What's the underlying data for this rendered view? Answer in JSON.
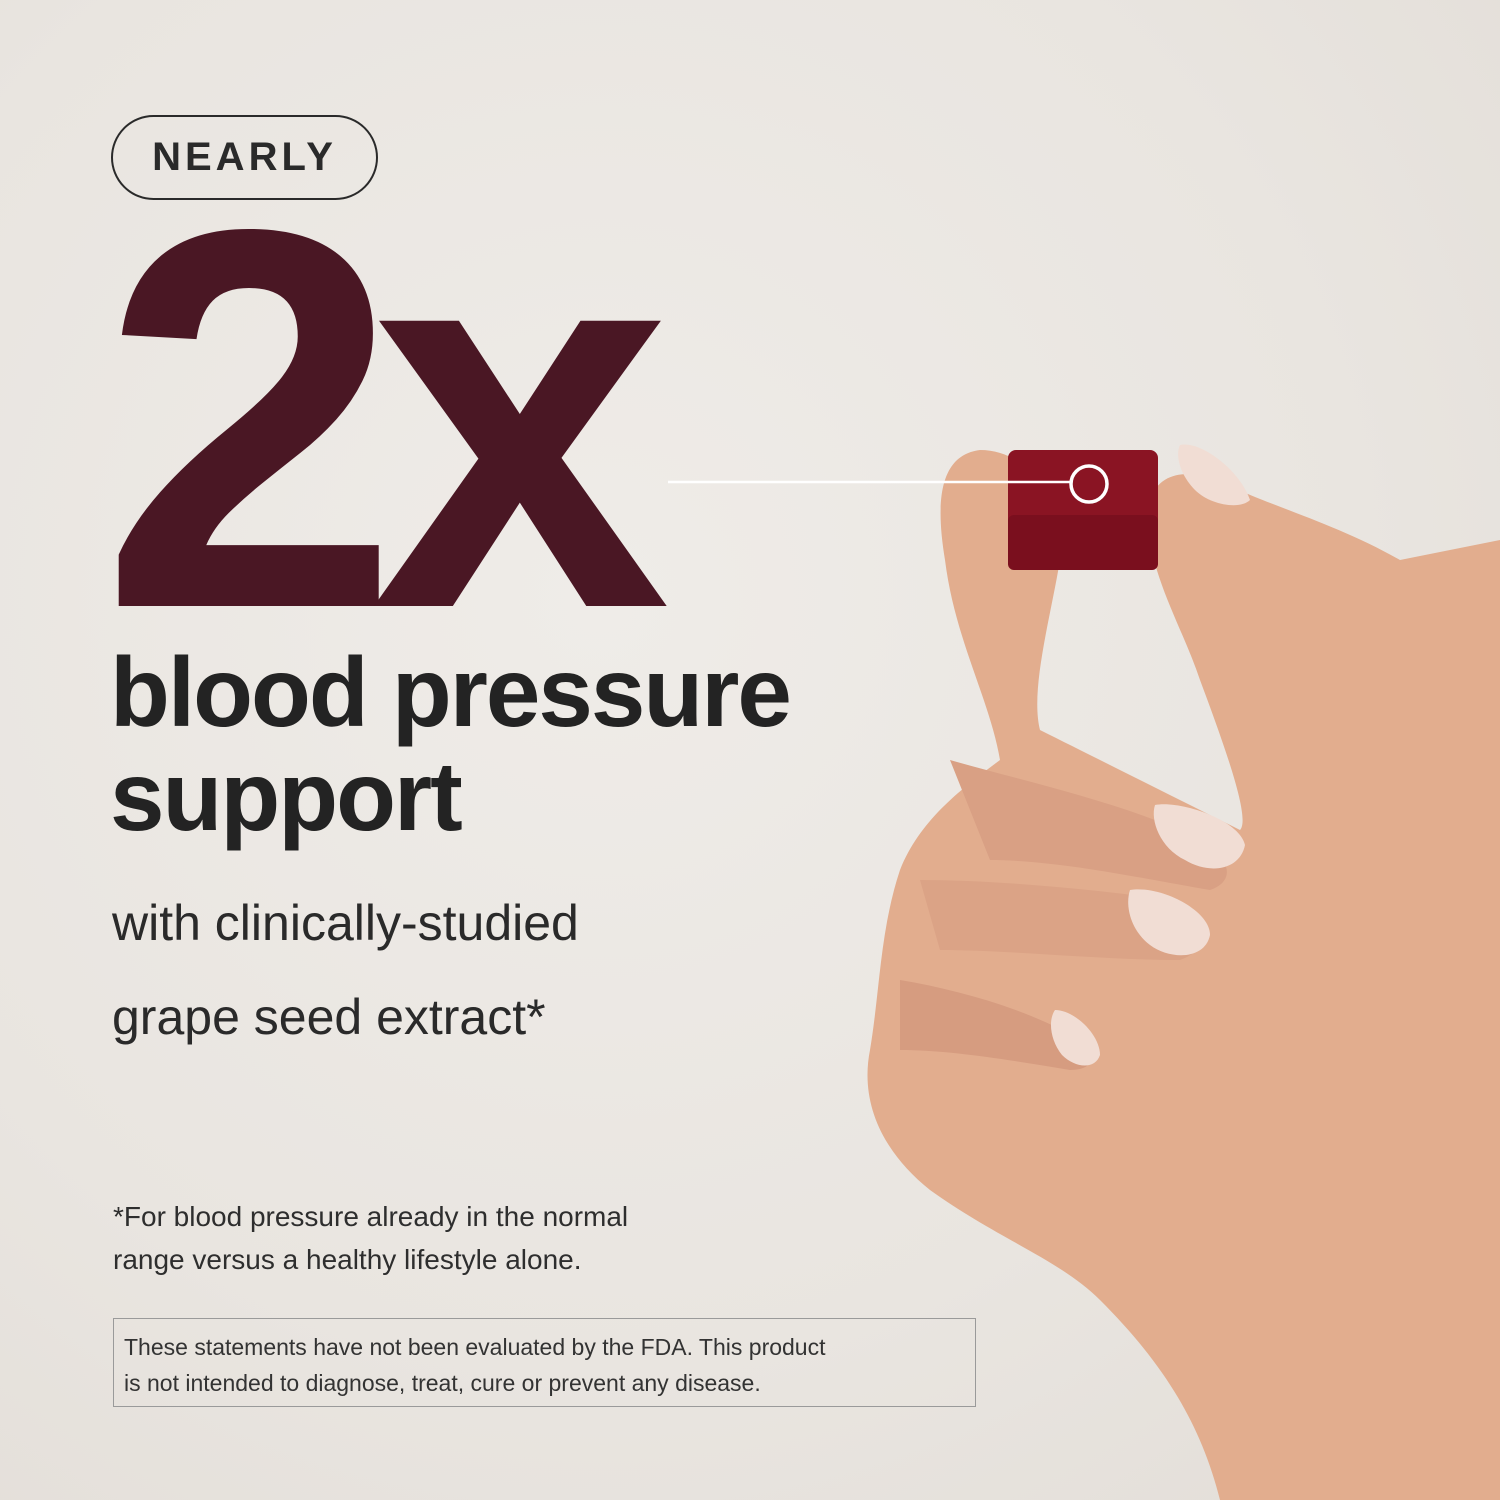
{
  "badge": "NEARLY",
  "headline_number": "2x",
  "headline": [
    "blood pressure",
    "support"
  ],
  "subheadline": [
    "with clinically-studied",
    "grape seed extract*"
  ],
  "footnote": [
    "*For blood pressure already in the normal",
    "range versus a healthy lifestyle alone."
  ],
  "disclaimer": [
    "These statements have not been evaluated by the FDA. This product",
    "is not intended to diagnose, treat, cure or prevent any disease."
  ],
  "colors": {
    "accent": "#4a1724",
    "gummy": "#8a1423",
    "background": "#ebe7e2"
  }
}
